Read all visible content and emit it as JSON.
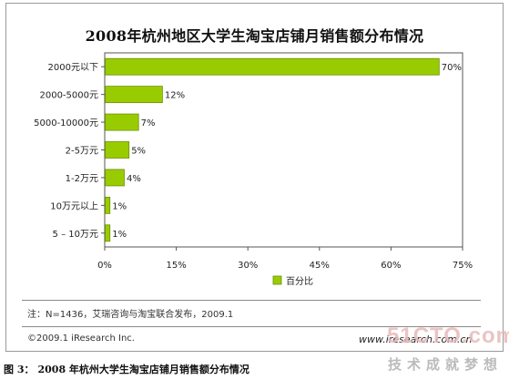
{
  "chart_data": {
    "type": "bar",
    "orientation": "horizontal",
    "title": "2008年杭州地区大学生淘宝店铺月销售额分布情况",
    "categories": [
      "2000元以下",
      "2000-5000元",
      "5000-10000元",
      "2-5万元",
      "1-2万元",
      "10万元以上",
      "5 – 10万元"
    ],
    "series": [
      {
        "name": "百分比",
        "values": [
          70,
          12,
          7,
          5,
          4,
          1,
          1
        ]
      }
    ],
    "data_labels": [
      "70%",
      "12%",
      "7%",
      "5%",
      "4%",
      "1%",
      "1%"
    ],
    "xlim": [
      0,
      75
    ],
    "xticks": [
      0,
      15,
      30,
      45,
      60,
      75
    ],
    "xtick_labels": [
      "0%",
      "15%",
      "30%",
      "45%",
      "60%",
      "75%"
    ],
    "xlabel": "",
    "ylabel": "",
    "legend_position": "bottom",
    "grid": false,
    "colors": {
      "bar": "#99cc00",
      "bar_edge": "#6b8f00",
      "axis": "#555555"
    }
  },
  "note": "注：N=1436，艾瑞咨询与淘宝联合发布，2009.1",
  "copyright": "©2009.1 iResearch Inc.",
  "site": "www.iresearch.com.cn",
  "watermark": {
    "logo": "51CTO.com",
    "sub": "技术成就梦想"
  },
  "caption": {
    "number": "图 3：",
    "text": "2008 年杭州大学生淘宝店铺月销售额分布情况"
  }
}
